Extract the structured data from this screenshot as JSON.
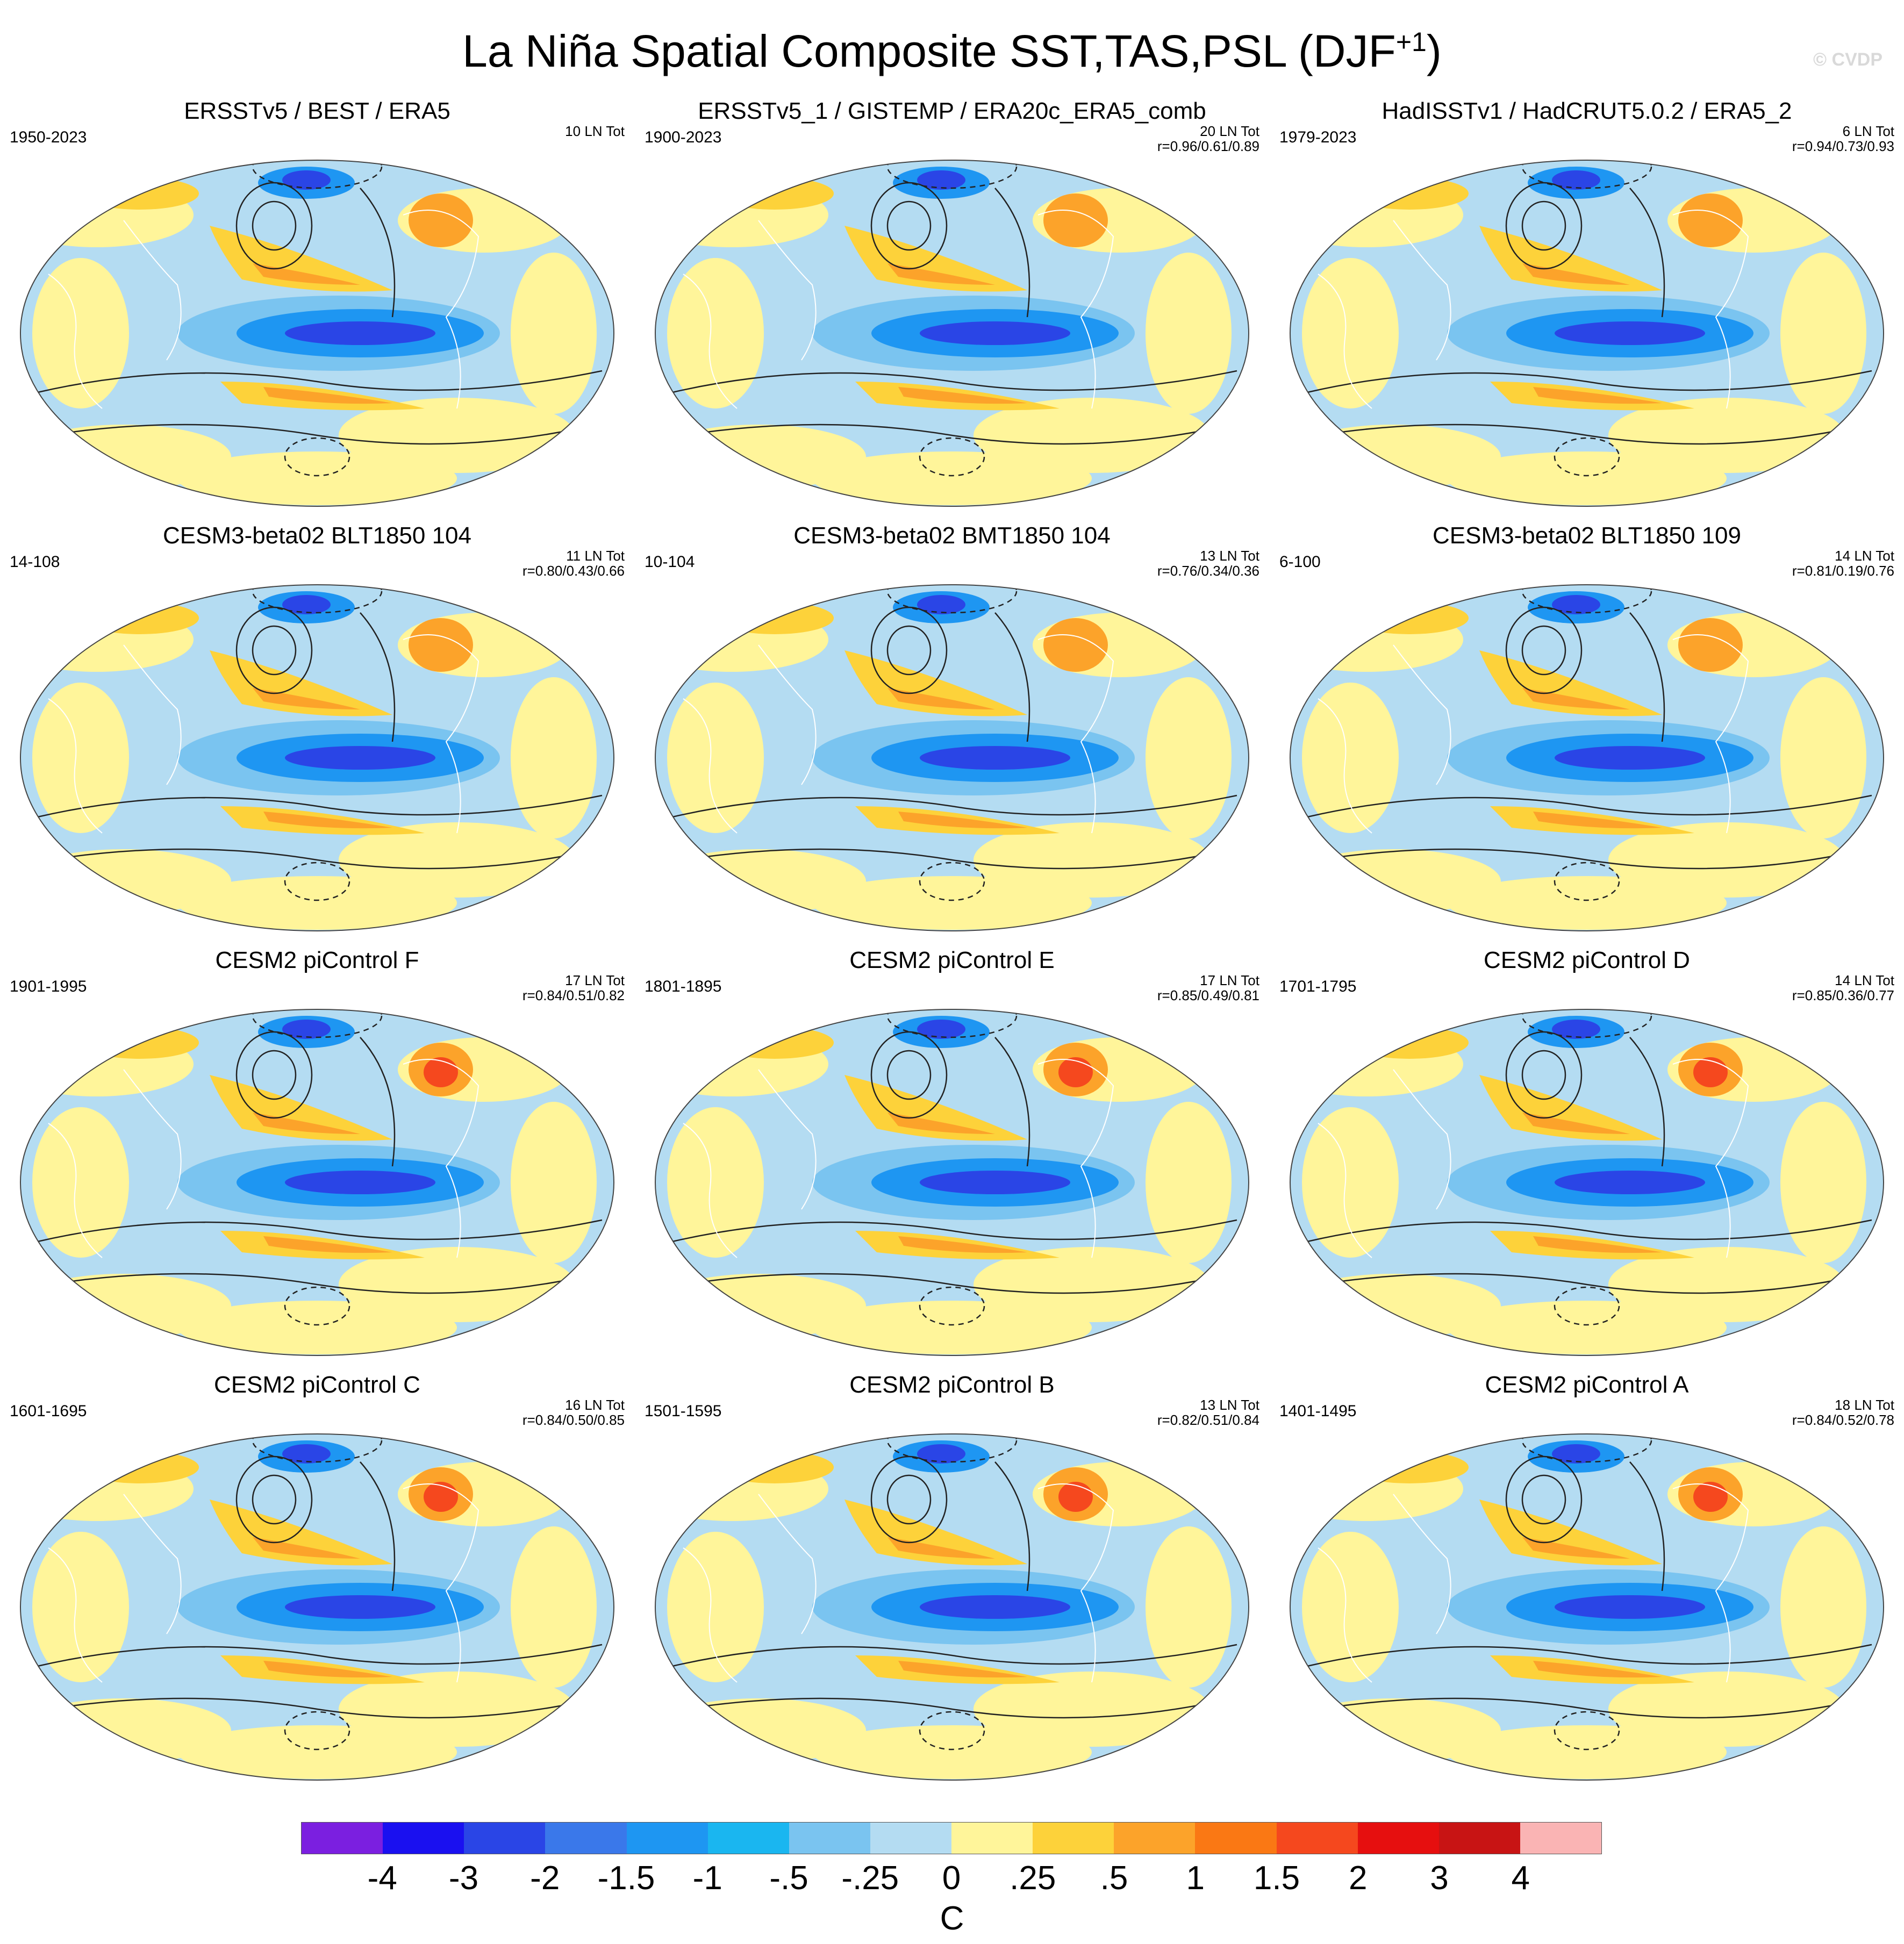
{
  "title": "La Niña Spatial Composite SST,TAS,PSL (DJF",
  "title_sup": "+1",
  "title_close": ")",
  "watermark": "© CVDP",
  "panels": [
    {
      "title": "ERSSTv5 / BEST / ERA5",
      "years": "1950-2023",
      "ln": "10 LN Tot",
      "r": ""
    },
    {
      "title": "ERSSTv5_1 / GISTEMP / ERA20c_ERA5_comb",
      "years": "1900-2023",
      "ln": "20 LN Tot",
      "r": "r=0.96/0.61/0.89"
    },
    {
      "title": "HadISSTv1 / HadCRUT5.0.2 / ERA5_2",
      "years": "1979-2023",
      "ln": "6 LN Tot",
      "r": "r=0.94/0.73/0.93"
    },
    {
      "title": "CESM3-beta02 BLT1850 104",
      "years": "14-108",
      "ln": "11 LN Tot",
      "r": "r=0.80/0.43/0.66"
    },
    {
      "title": "CESM3-beta02 BMT1850 104",
      "years": "10-104",
      "ln": "13 LN Tot",
      "r": "r=0.76/0.34/0.36"
    },
    {
      "title": "CESM3-beta02 BLT1850 109",
      "years": "6-100",
      "ln": "14 LN Tot",
      "r": "r=0.81/0.19/0.76"
    },
    {
      "title": "CESM2 piControl F",
      "years": "1901-1995",
      "ln": "17 LN Tot",
      "r": "r=0.84/0.51/0.82"
    },
    {
      "title": "CESM2 piControl E",
      "years": "1801-1895",
      "ln": "17 LN Tot",
      "r": "r=0.85/0.49/0.81"
    },
    {
      "title": "CESM2 piControl D",
      "years": "1701-1795",
      "ln": "14 LN Tot",
      "r": "r=0.85/0.36/0.77"
    },
    {
      "title": "CESM2 piControl C",
      "years": "1601-1695",
      "ln": "16 LN Tot",
      "r": "r=0.84/0.50/0.85"
    },
    {
      "title": "CESM2 piControl B",
      "years": "1501-1595",
      "ln": "13 LN Tot",
      "r": "r=0.82/0.51/0.84"
    },
    {
      "title": "CESM2 piControl A",
      "years": "1401-1495",
      "ln": "18 LN Tot",
      "r": "r=0.84/0.52/0.78"
    }
  ],
  "legend": {
    "colors": [
      "#7b1fe0",
      "#1a10f0",
      "#2a45e6",
      "#3a78ea",
      "#1e96f2",
      "#1ab6f0",
      "#7ac4f0",
      "#b4dcf2",
      "#fff59a",
      "#fdd23a",
      "#fca32a",
      "#fa7814",
      "#f5481e",
      "#e60f0f",
      "#c81414",
      "#fab4b4"
    ],
    "labels": [
      "-4",
      "-3",
      "-2",
      "-1.5",
      "-1",
      "-.5",
      "-.25",
      "0",
      ".25",
      ".5",
      "1",
      "1.5",
      "2",
      "3",
      "4"
    ],
    "units": "C"
  },
  "palette": {
    "deep_blue": "#2a45e6",
    "mid_blue": "#1e96f2",
    "light_blue": "#7ac4f0",
    "pale_blue": "#b4dcf2",
    "pale_yellow": "#fff59a",
    "yellow": "#fdd23a",
    "orange": "#fca32a",
    "red_orange": "#f5481e"
  }
}
